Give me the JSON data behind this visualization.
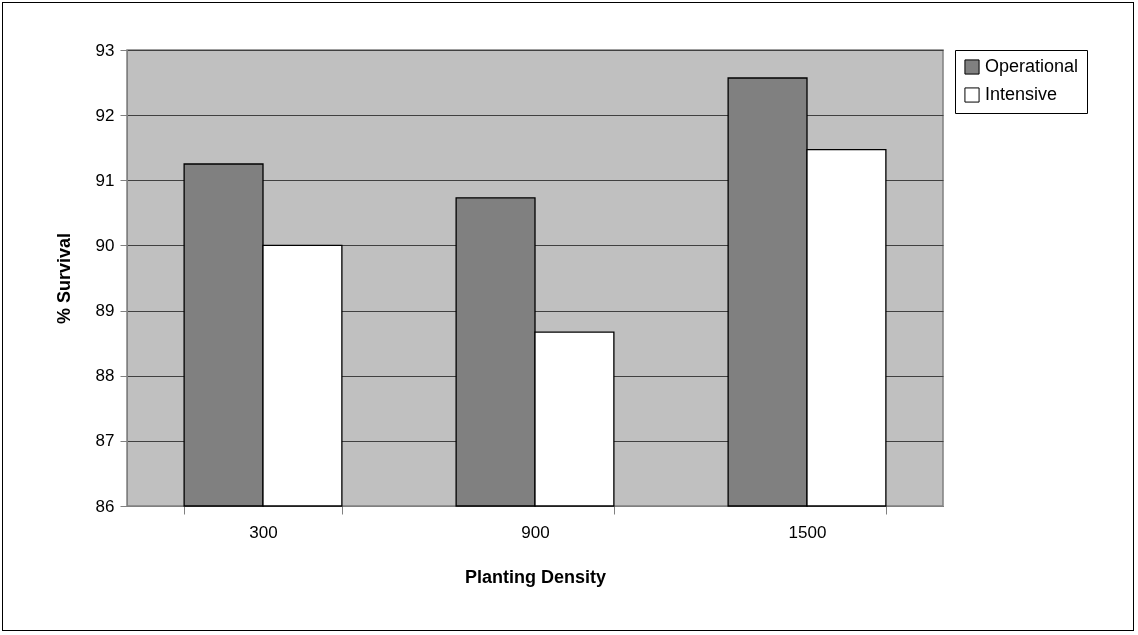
{
  "chart_data": {
    "type": "bar",
    "xlabel": "Planting Density",
    "ylabel": "% Survival",
    "categories": [
      "300",
      "900",
      "1500"
    ],
    "series": [
      {
        "name": "Operational",
        "color": "#808080",
        "values": [
          91.25,
          90.73,
          92.57
        ]
      },
      {
        "name": "Intensive",
        "color": "#ffffff",
        "values": [
          90.0,
          88.67,
          91.47
        ]
      }
    ],
    "ylim": [
      86,
      93
    ],
    "yticks": [
      86,
      87,
      88,
      89,
      90,
      91,
      92,
      93
    ],
    "grid": "y",
    "legend": "right"
  }
}
